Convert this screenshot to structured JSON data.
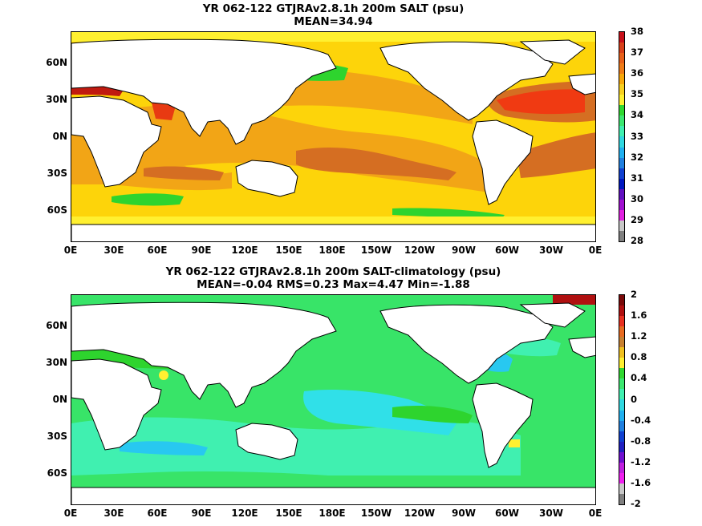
{
  "panels": [
    {
      "title_line1": "YR 062-122 GTJRAv2.8.1h 200m SALT (psu)",
      "title_line2": "MEAN=34.94",
      "colorbar_labels": [
        "38",
        "37",
        "36",
        "35",
        "34",
        "33",
        "32",
        "31",
        "30",
        "29",
        "28"
      ],
      "colorbar_colors": [
        "#c8101a",
        "#d8401a",
        "#e8601a",
        "#f07c18",
        "#f8a80a",
        "#f8d020",
        "#fff030",
        "#30d830",
        "#3ce870",
        "#40f0b0",
        "#30d8e0",
        "#20b0f0",
        "#2080e0",
        "#1040d0",
        "#0018c0",
        "#6010c0",
        "#a010d0",
        "#e020e0",
        "#c8c8c8",
        "#808080"
      ]
    },
    {
      "title_line1": "YR 062-122 GTJRAv2.8.1h 200m SALT-climatology (psu)",
      "title_line2": "MEAN=-0.04   RMS=0.23   Max=4.47   Min=-1.88",
      "colorbar_labels": [
        "2",
        "1.6",
        "1.2",
        "0.8",
        "0.4",
        "0",
        "-0.4",
        "-0.8",
        "-1.2",
        "-1.6",
        "-2"
      ],
      "colorbar_colors": [
        "#7a0a0a",
        "#b01010",
        "#e83020",
        "#e86a20",
        "#c88030",
        "#f0c020",
        "#fff030",
        "#30d830",
        "#3ce870",
        "#40f0b0",
        "#30d8e0",
        "#20b0f0",
        "#2080e0",
        "#1040d0",
        "#2020c0",
        "#7010d0",
        "#c020e0",
        "#f020f0",
        "#c8c8c8",
        "#808080"
      ]
    }
  ],
  "lat_labels": [
    "60N",
    "30N",
    "0N",
    "30S",
    "60S"
  ],
  "lon_labels": [
    "0E",
    "30E",
    "60E",
    "90E",
    "120E",
    "150E",
    "180E",
    "150W",
    "120W",
    "90W",
    "60W",
    "30W",
    "0E"
  ]
}
